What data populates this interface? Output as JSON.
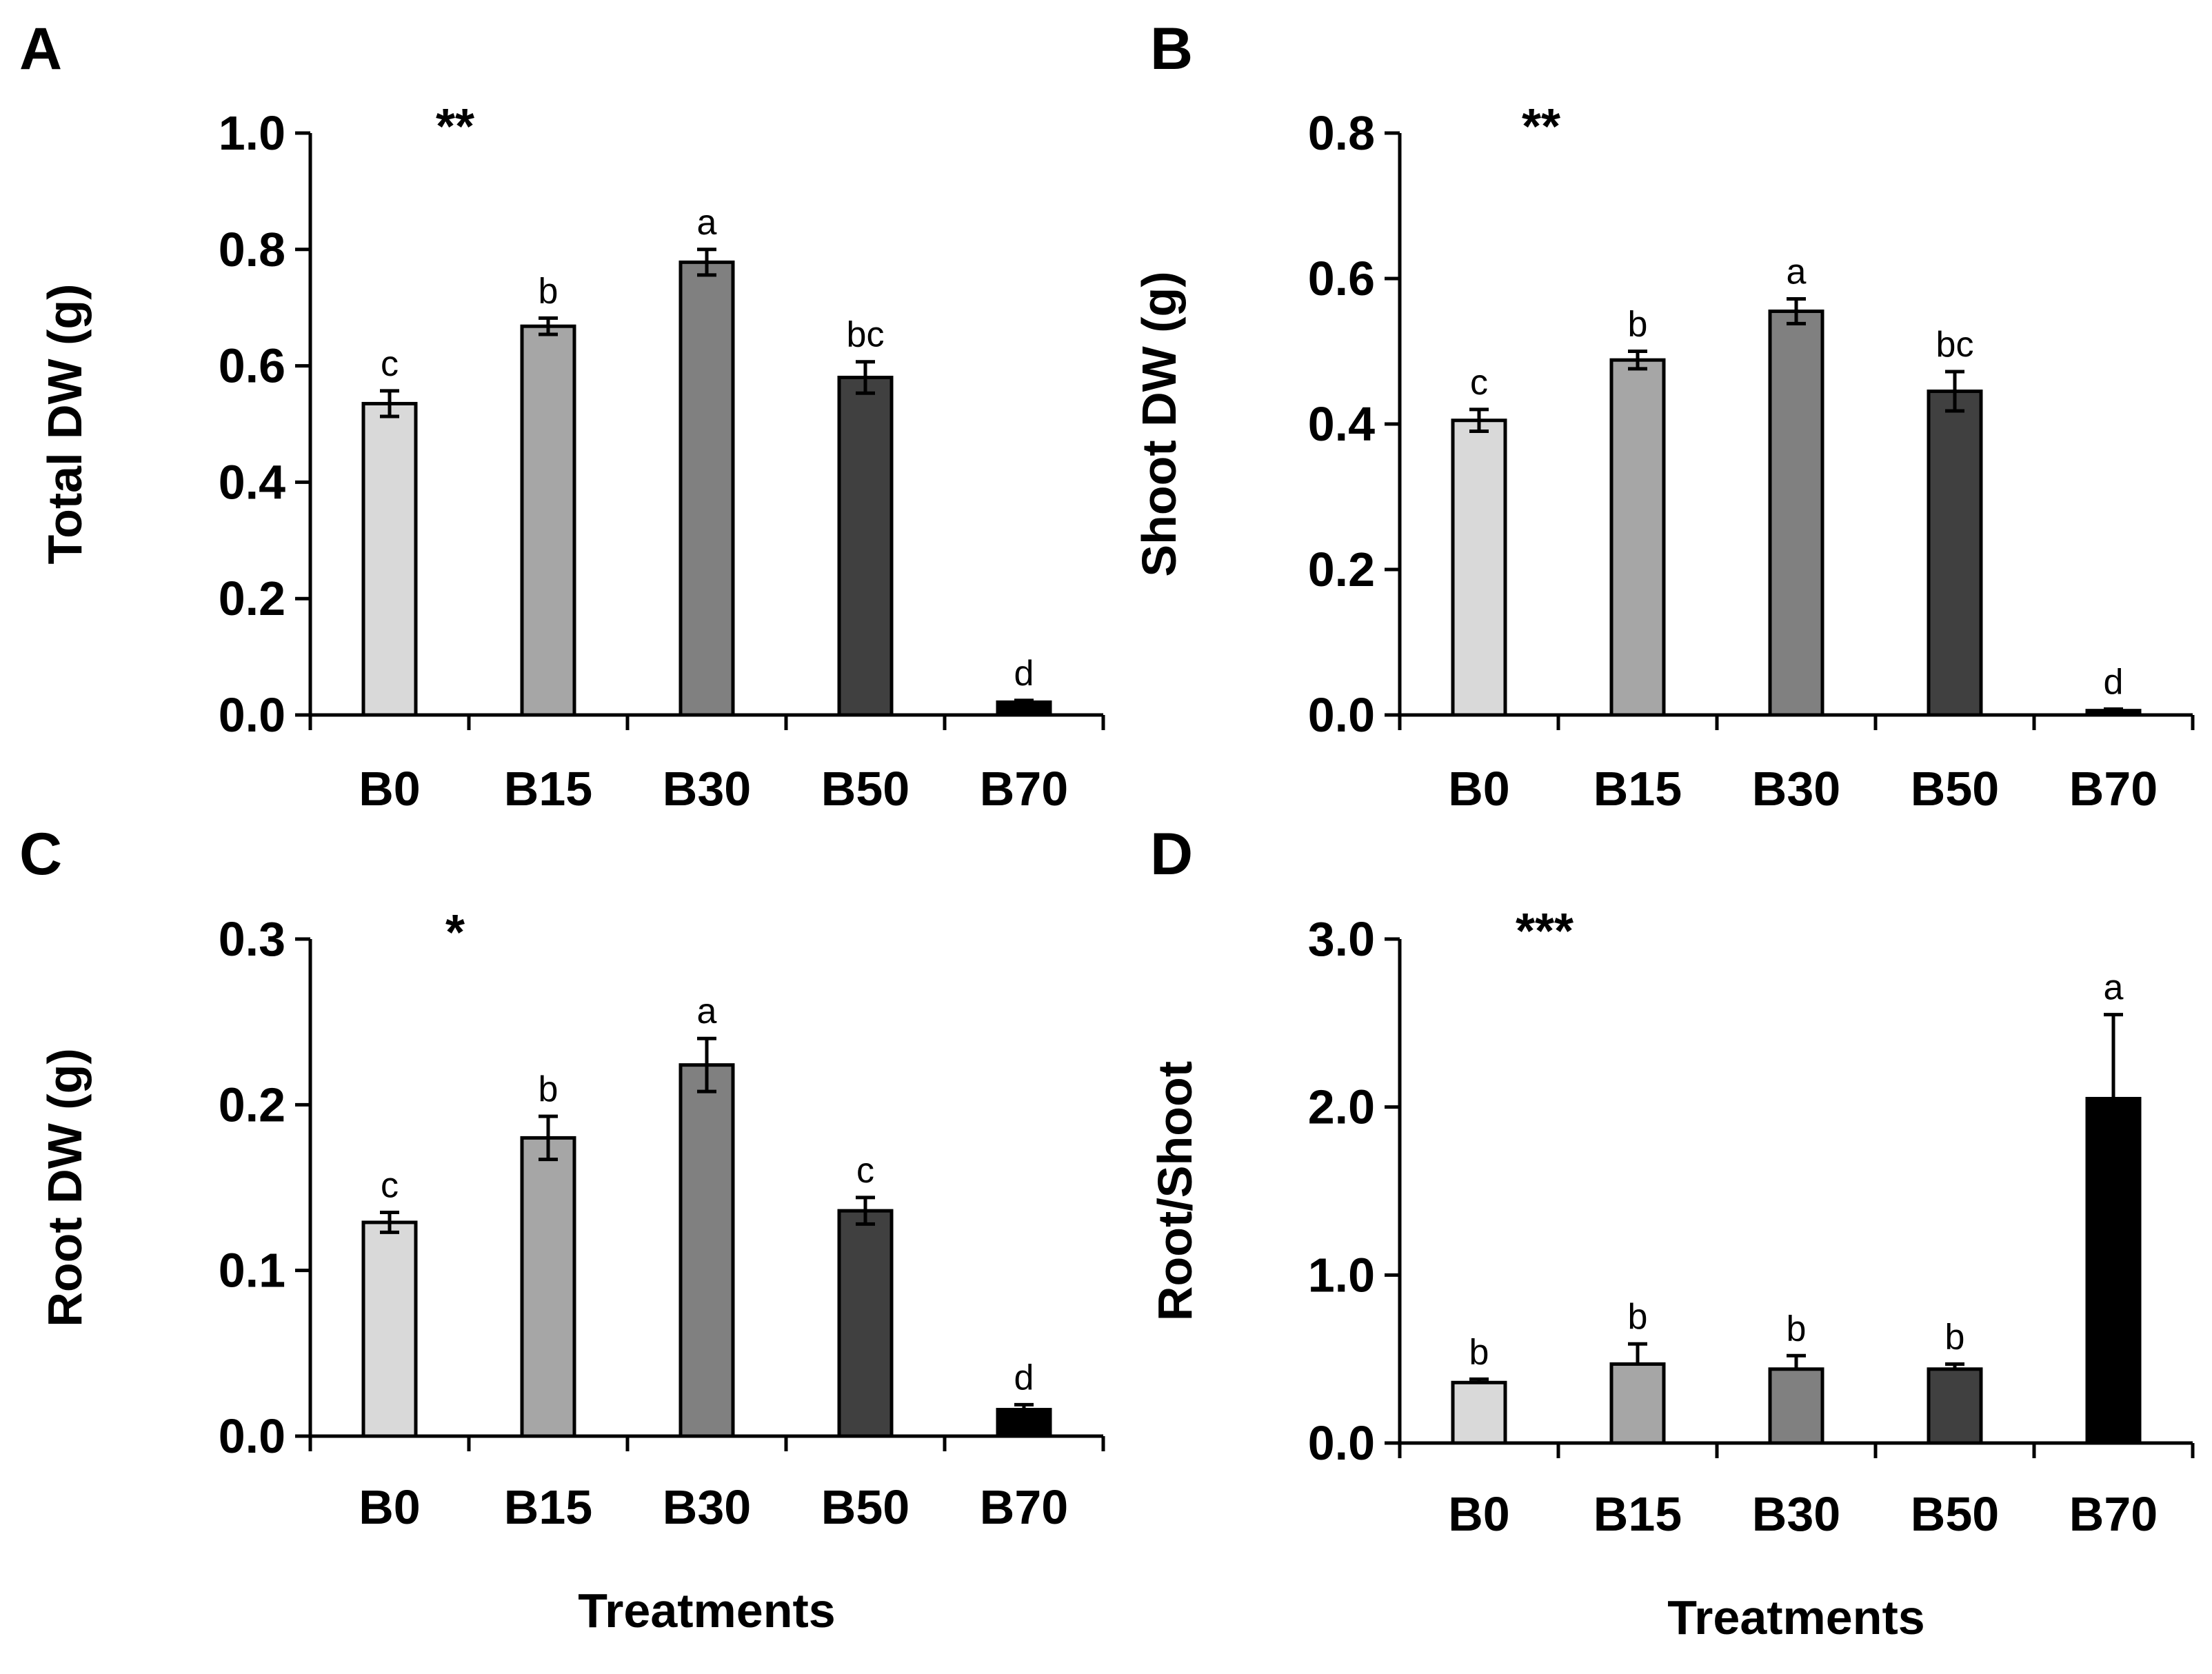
{
  "chart_data": [
    {
      "type": "bar",
      "panel": "A",
      "ylabel": "Total DW (g)",
      "xlabel": "",
      "significance": "**",
      "ylim": [
        0,
        1.0
      ],
      "yticks": [
        "0.0",
        "0.2",
        "0.4",
        "0.6",
        "0.8",
        "1.0"
      ],
      "categories": [
        "B0",
        "B15",
        "B30",
        "B50",
        "B70"
      ],
      "values": [
        0.535,
        0.668,
        0.778,
        0.58,
        0.022
      ],
      "errors": [
        0.022,
        0.014,
        0.022,
        0.027,
        0.003
      ],
      "letters": [
        "c",
        "b",
        "a",
        "bc",
        "d"
      ],
      "colors": [
        "#d9d9d9",
        "#a6a6a6",
        "#808080",
        "#404040",
        "#000000"
      ]
    },
    {
      "type": "bar",
      "panel": "B",
      "ylabel": "Shoot DW (g)",
      "xlabel": "",
      "significance": "**",
      "ylim": [
        0,
        0.8
      ],
      "yticks": [
        "0.0",
        "0.2",
        "0.4",
        "0.6",
        "0.8"
      ],
      "categories": [
        "B0",
        "B15",
        "B30",
        "B50",
        "B70"
      ],
      "values": [
        0.405,
        0.488,
        0.555,
        0.445,
        0.006
      ],
      "errors": [
        0.015,
        0.012,
        0.017,
        0.027,
        0.002
      ],
      "letters": [
        "c",
        "b",
        "a",
        "bc",
        "d"
      ],
      "colors": [
        "#d9d9d9",
        "#a6a6a6",
        "#808080",
        "#404040",
        "#000000"
      ]
    },
    {
      "type": "bar",
      "panel": "C",
      "ylabel": "Root DW (g)",
      "xlabel": "Treatments",
      "significance": "*",
      "ylim": [
        0,
        0.3
      ],
      "yticks": [
        "0.0",
        "0.1",
        "0.2",
        "0.3"
      ],
      "categories": [
        "B0",
        "B15",
        "B30",
        "B50",
        "B70"
      ],
      "values": [
        0.129,
        0.18,
        0.224,
        0.136,
        0.016
      ],
      "errors": [
        0.006,
        0.013,
        0.016,
        0.008,
        0.003
      ],
      "letters": [
        "c",
        "b",
        "a",
        "c",
        "d"
      ],
      "colors": [
        "#d9d9d9",
        "#a6a6a6",
        "#808080",
        "#404040",
        "#000000"
      ]
    },
    {
      "type": "bar",
      "panel": "D",
      "ylabel": "Root/Shoot",
      "xlabel": "Treatments",
      "significance": "***",
      "ylim": [
        0,
        3.0
      ],
      "yticks": [
        "0.0",
        "1.0",
        "2.0",
        "3.0"
      ],
      "categories": [
        "B0",
        "B15",
        "B30",
        "B50",
        "B70"
      ],
      "values": [
        0.36,
        0.47,
        0.44,
        0.44,
        2.05
      ],
      "errors": [
        0.02,
        0.12,
        0.08,
        0.03,
        0.5
      ],
      "errors_upper_only": true,
      "letters": [
        "b",
        "b",
        "b",
        "b",
        "a"
      ],
      "colors": [
        "#d9d9d9",
        "#a6a6a6",
        "#808080",
        "#404040",
        "#000000"
      ]
    }
  ]
}
